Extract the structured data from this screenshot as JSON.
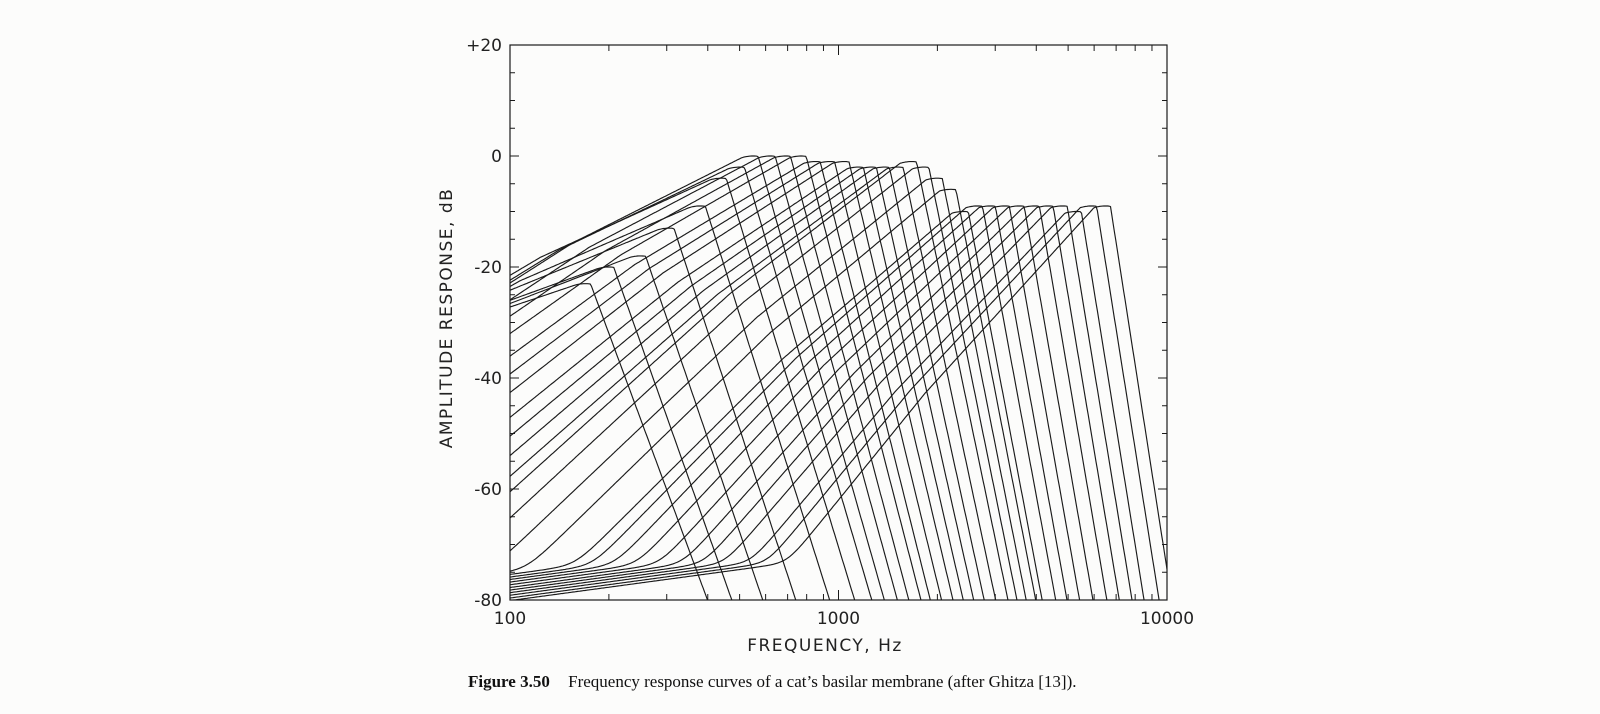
{
  "chart_data": {
    "type": "line",
    "title": "",
    "xlabel": "FREQUENCY, Hz",
    "ylabel": "AMPLITUDE RESPONSE, dB",
    "x_scale": "log",
    "xlim": [
      100,
      10000
    ],
    "ylim": [
      -80,
      20
    ],
    "x_ticks": [
      100,
      1000,
      10000
    ],
    "x_tick_labels": [
      "100",
      "1000",
      "10000"
    ],
    "y_ticks": [
      20,
      0,
      -20,
      -40,
      -60,
      -80
    ],
    "y_tick_labels": [
      "+20",
      "0",
      "-20",
      "-40",
      "-60",
      "-80"
    ],
    "grid": false,
    "legend": "none",
    "series_count": 33,
    "center_freqs": [
      170,
      200,
      250,
      305,
      380,
      440,
      500,
      550,
      620,
      690,
      770,
      850,
      940,
      1040,
      1150,
      1260,
      1380,
      1520,
      1670,
      1820,
      2000,
      2200,
      2400,
      2650,
      2900,
      3200,
      3550,
      3950,
      4350,
      4800,
      5300,
      5900,
      6500
    ],
    "peak_levels_db": [
      -23,
      -20,
      -18,
      -13,
      -9,
      -4,
      -2,
      0,
      0,
      0,
      0,
      -1,
      -1,
      -1,
      -2,
      -2,
      -2,
      -2,
      -1,
      -2,
      -4,
      -6,
      -10,
      -9,
      -9,
      -9,
      -9,
      -9,
      -9,
      -9,
      -10,
      -9,
      -9
    ],
    "line_color": "#1a1a1a"
  },
  "caption": {
    "figure_number": "Figure 3.50",
    "text": "Frequency response curves of a cat’s basilar membrane (after Ghitza [13])."
  }
}
